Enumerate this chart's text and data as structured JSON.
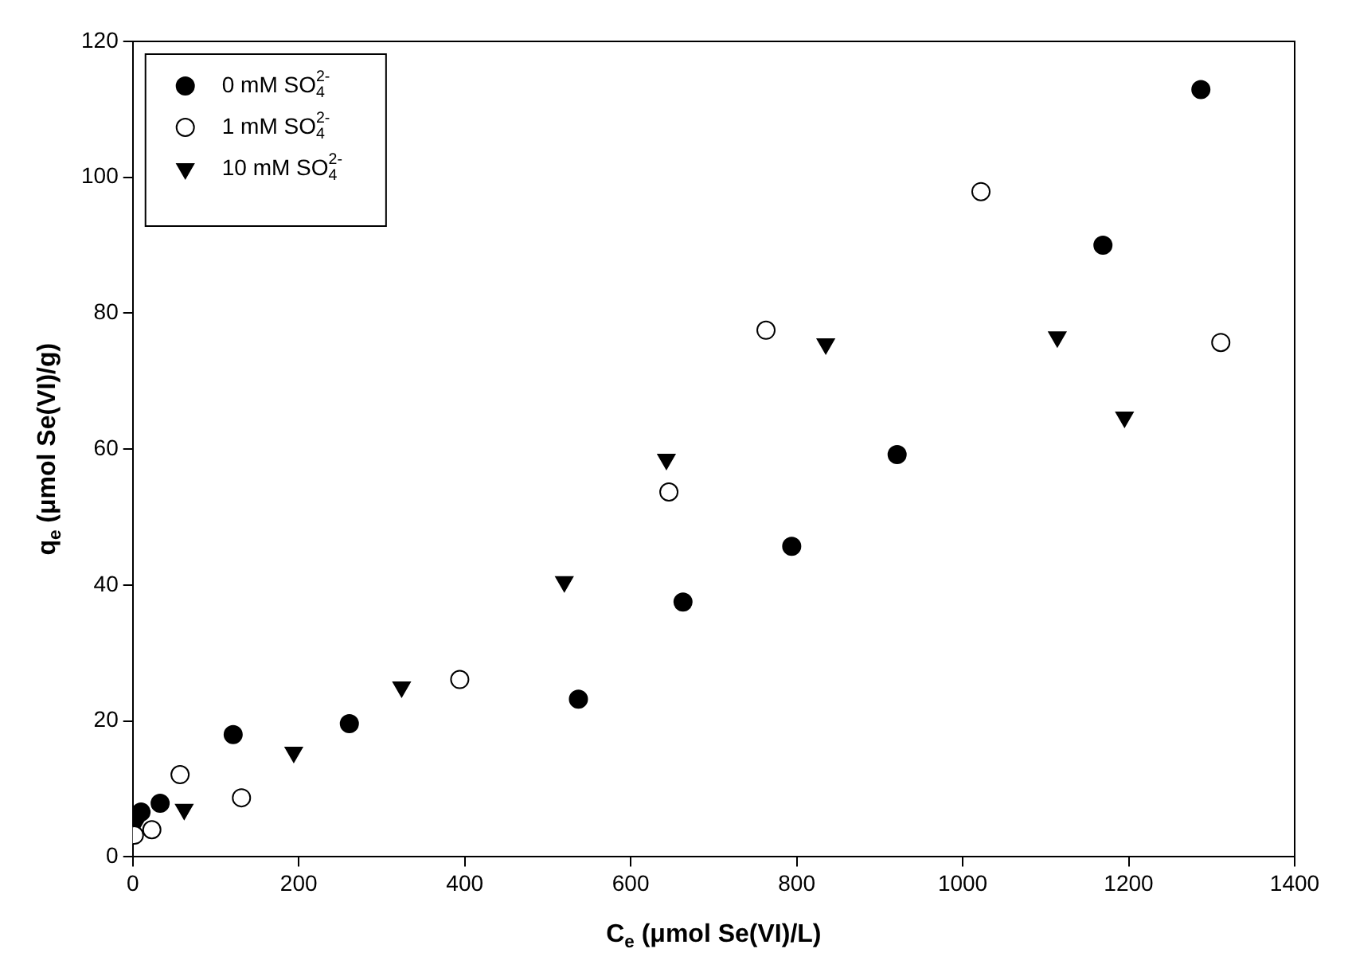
{
  "chart_data": {
    "type": "scatter",
    "xlabel": "C$_{e}$ (μmol Se(VI)/L)",
    "ylabel": "q$_{e}$ (μmol Se(VI)/g)",
    "xlim": [
      0,
      1400
    ],
    "xticks": [
      0,
      200,
      400,
      600,
      800,
      1000,
      1200,
      1400
    ],
    "ylim": [
      0,
      120
    ],
    "yticks": [
      0,
      20,
      40,
      60,
      80,
      100,
      120
    ],
    "grid": false,
    "legend": "top left",
    "series": [
      {
        "name": "0 mM SO$_{4}$$^{2-}$",
        "color": "#000000",
        "marker": "circle",
        "x": [
          10,
          33,
          121,
          261,
          537,
          663,
          794,
          921,
          1169,
          1287
        ],
        "values": [
          6.6,
          7.9,
          18.0,
          19.6,
          23.2,
          37.5,
          45.7,
          59.2,
          90.0,
          112.9
        ]
      },
      {
        "name": "1 mM SO$_{4}$$^{2-}$",
        "color": "#ffffff",
        "marker": "circle",
        "x": [
          2,
          23,
          57,
          131,
          394,
          646,
          763,
          1022,
          1311
        ],
        "values": [
          3.2,
          4.0,
          12.1,
          8.7,
          26.1,
          53.7,
          77.5,
          97.9,
          75.7
        ]
      },
      {
        "name": "10 mM SO$_{4}$$^{2-}$",
        "color": "#000000",
        "marker": "triangle",
        "x": [
          5,
          62,
          194,
          324,
          520,
          643,
          835,
          1114,
          1195
        ],
        "values": [
          5,
          7,
          15.4,
          25,
          40.5,
          58.5,
          75.5,
          76.5,
          64.7
        ]
      }
    ]
  }
}
